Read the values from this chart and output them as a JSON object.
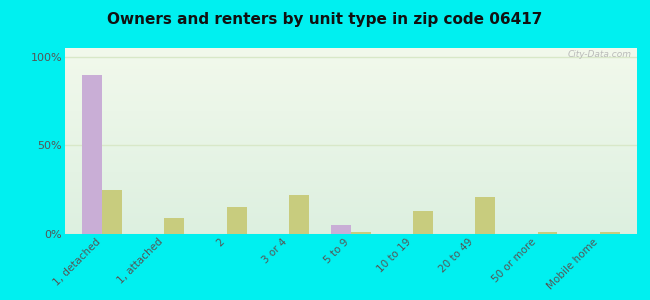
{
  "title": "Owners and renters by unit type in zip code 06417",
  "categories": [
    "1, detached",
    "1, attached",
    "2",
    "3 or 4",
    "5 to 9",
    "10 to 19",
    "20 to 49",
    "50 or more",
    "Mobile home"
  ],
  "owner_values": [
    90,
    0,
    0,
    0,
    5,
    0,
    0,
    0,
    0
  ],
  "renter_values": [
    25,
    9,
    15,
    22,
    1,
    13,
    21,
    1,
    1
  ],
  "owner_color": "#c9aed6",
  "renter_color": "#c8cc7e",
  "background_color": "#00f0f0",
  "plot_bg_top": "#f2f9ec",
  "plot_bg_bottom": "#ddf0e0",
  "ylabel_ticks": [
    "0%",
    "50%",
    "100%"
  ],
  "ytick_vals": [
    0,
    50,
    100
  ],
  "ylim": [
    0,
    105
  ],
  "bar_width": 0.32,
  "watermark": "City-Data.com",
  "grid_color": "#d8e8c8",
  "tick_color": "#555555"
}
